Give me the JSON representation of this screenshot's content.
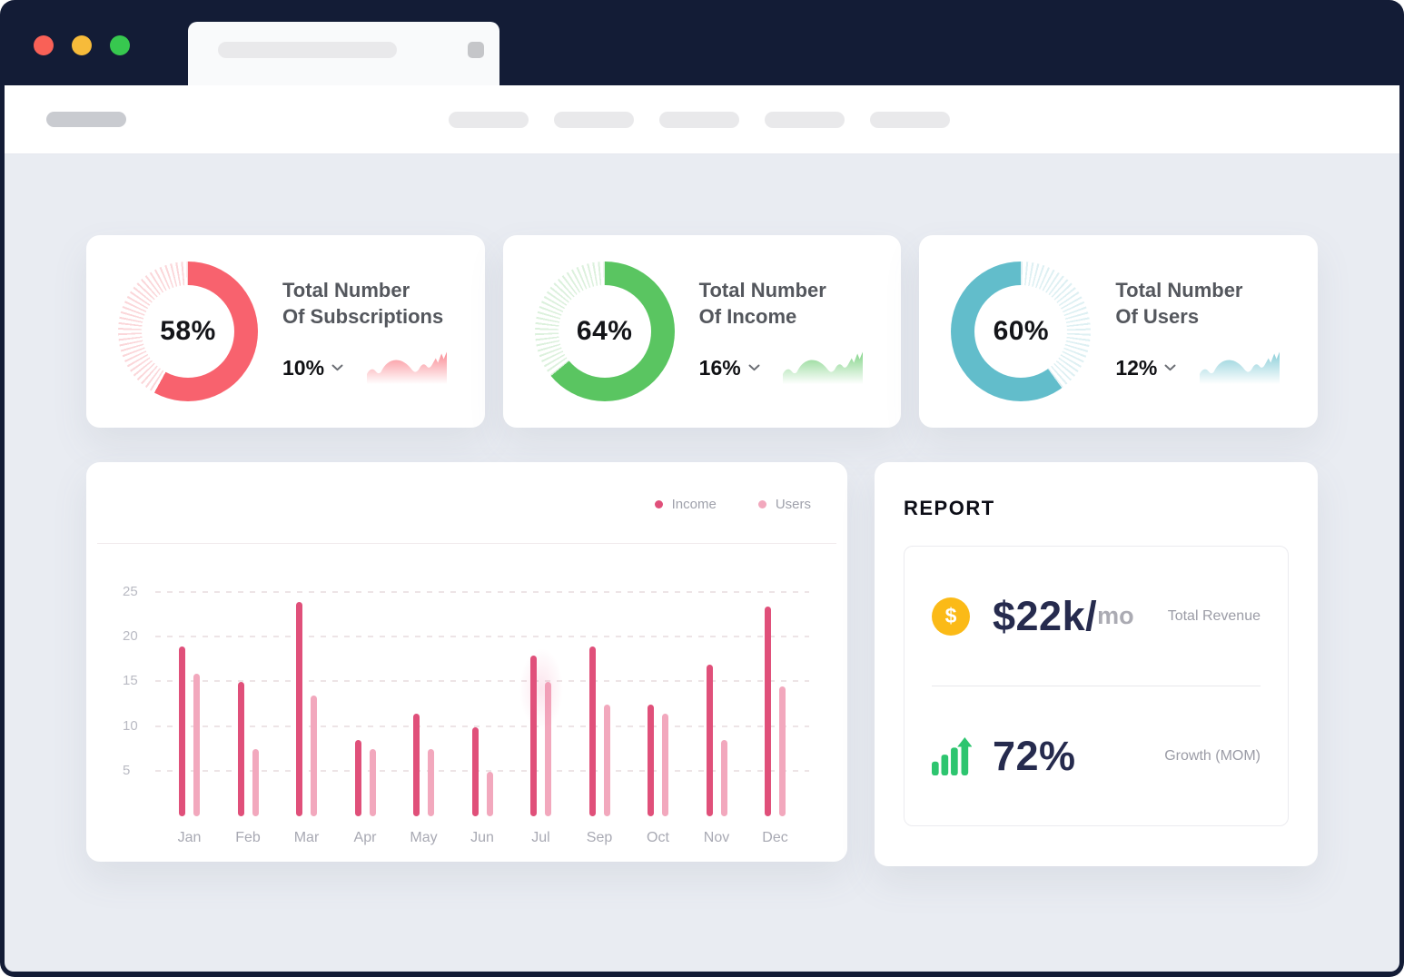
{
  "window": {
    "topbar_color": "#131C36",
    "traffic_lights": [
      {
        "name": "close",
        "color": "#F96157"
      },
      {
        "name": "minimize",
        "color": "#F7BB3A"
      },
      {
        "name": "zoom",
        "color": "#37C84F"
      }
    ]
  },
  "stat_cards": [
    {
      "percent": "58%",
      "value": 58,
      "arc_start": 0,
      "arc_end": 58,
      "accent_color": "#F8626E",
      "tick_color": "#FBD7DA",
      "title_line1": "Total Number",
      "title_line2": "Of Subscriptions",
      "delta": "10%"
    },
    {
      "percent": "64%",
      "value": 64,
      "arc_start": 0,
      "arc_end": 64,
      "accent_color": "#5AC561",
      "tick_color": "#DCF1DD",
      "title_line1": "Total Number",
      "title_line2": "Of Income",
      "delta": "16%"
    },
    {
      "percent": "60%",
      "value": 60,
      "arc_start": 40,
      "arc_end": 100,
      "accent_color": "#62BDCB",
      "tick_color": "#DEF0F3",
      "title_line1": "Total Number",
      "title_line2": "Of Users",
      "delta": "12%"
    }
  ],
  "chart_data": [
    {
      "type": "bar",
      "title": "",
      "categories": [
        "Jan",
        "Feb",
        "Mar",
        "Apr",
        "May",
        "Jun",
        "Jul",
        "Sep",
        "Oct",
        "Nov",
        "Dec"
      ],
      "series": [
        {
          "name": "Income",
          "color": "#E0507A",
          "values": [
            19,
            15,
            24,
            8.5,
            11.5,
            10,
            18,
            19,
            12.5,
            17,
            23.5
          ]
        },
        {
          "name": "Users",
          "color": "#F2A8BD",
          "values": [
            16,
            7.5,
            13.5,
            7.5,
            7.5,
            5,
            15,
            12.5,
            11.5,
            8.5,
            14.5
          ]
        }
      ],
      "xlabel": "",
      "ylabel": "",
      "ylim": [
        0,
        25
      ],
      "yticks": [
        5,
        10,
        15,
        20,
        25
      ],
      "grid": "dashed-horizontal",
      "legend_position": "top-right",
      "highlight": "Jul"
    },
    {
      "type": "donut",
      "label": "Total Number Of Subscriptions",
      "value": 58,
      "delta": "10%"
    },
    {
      "type": "donut",
      "label": "Total Number Of Income",
      "value": 64,
      "delta": "16%"
    },
    {
      "type": "donut",
      "label": "Total Number Of Users",
      "value": 60,
      "delta": "12%"
    }
  ],
  "report": {
    "title": "REPORT",
    "revenue_value": "$22k/",
    "revenue_unit": "mo",
    "revenue_label": "Total Revenue",
    "revenue_icon_color": "#FBBA17",
    "growth_value": "72%",
    "growth_label": "Growth (MOM)",
    "growth_icon_color": "#2DC56F"
  }
}
